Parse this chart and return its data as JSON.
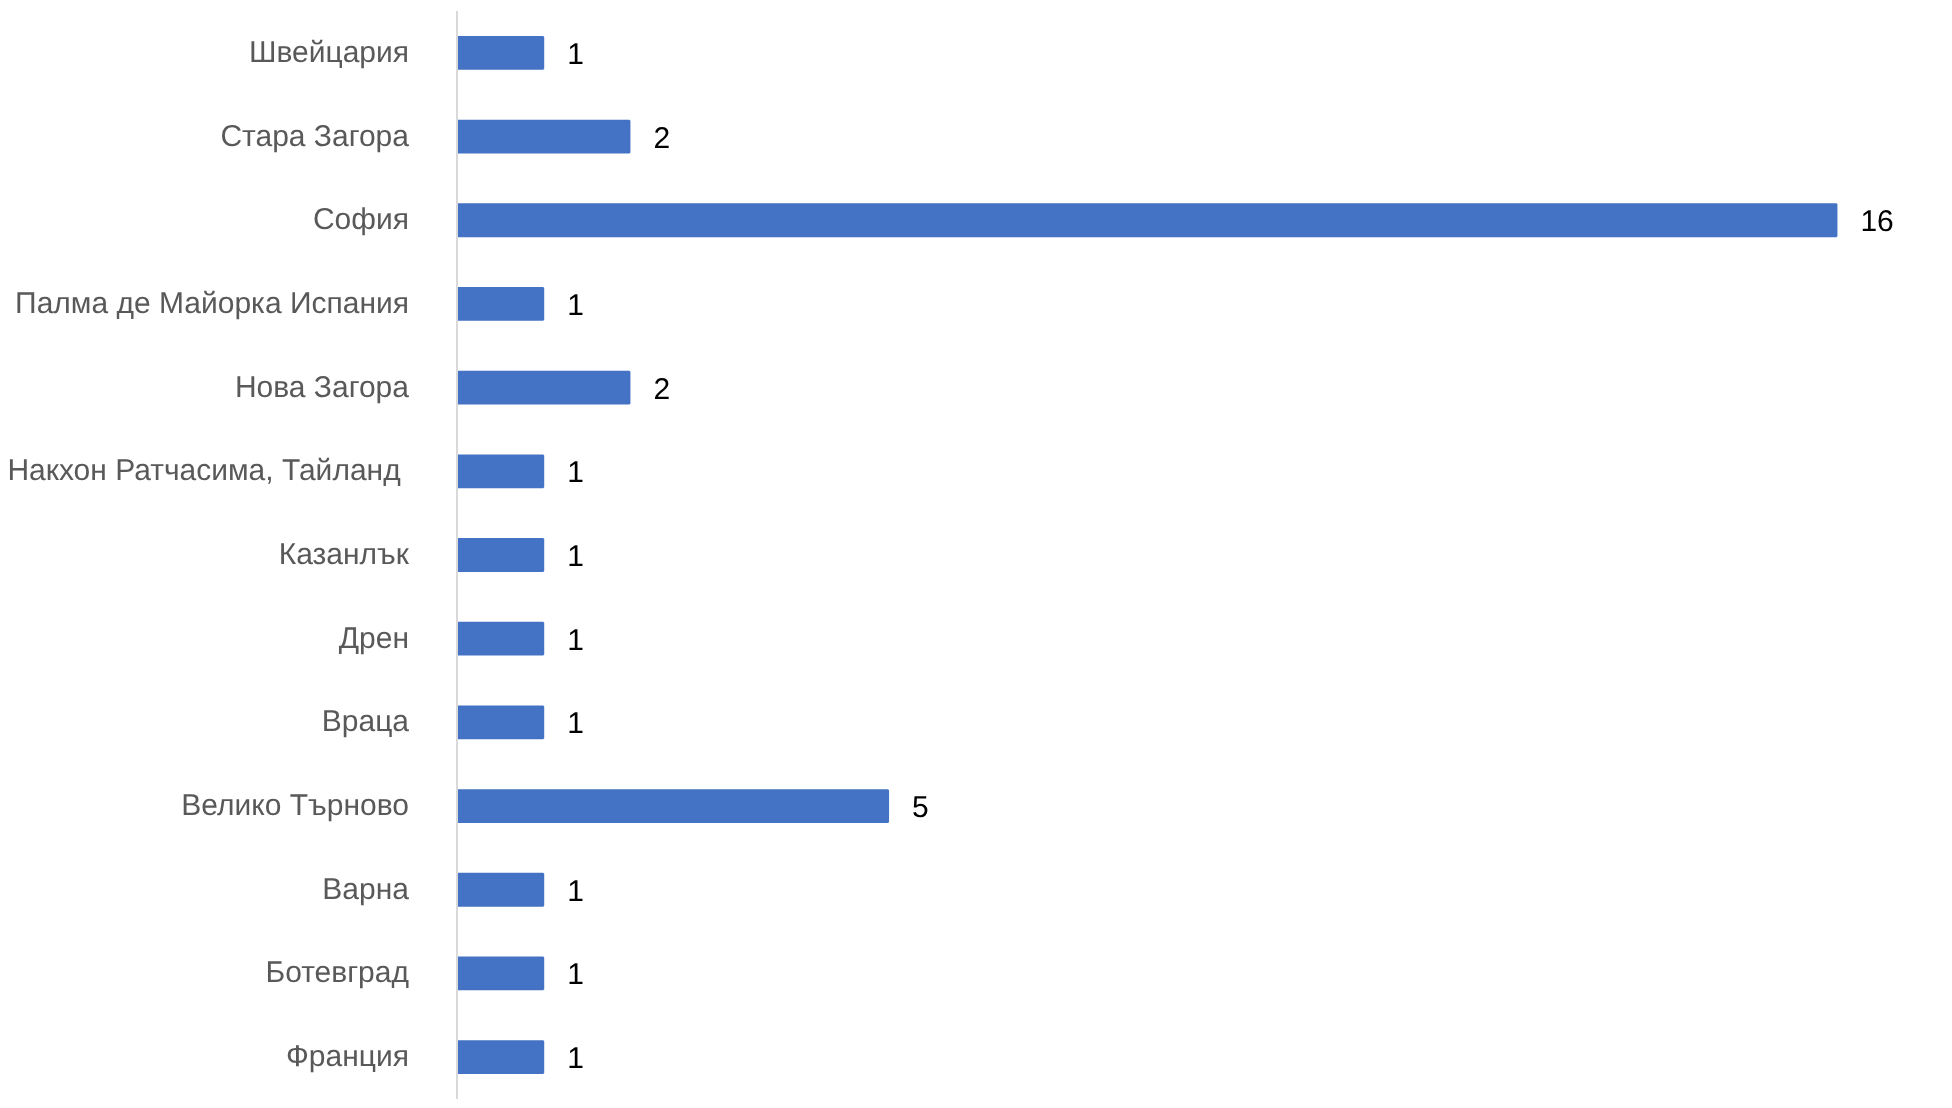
{
  "chart_data": {
    "type": "bar",
    "orientation": "horizontal",
    "categories": [
      "Швейцария",
      "Стара Загора",
      "София",
      "Палма де Майорка Испания",
      "Нова Загора",
      "Накхон Ратчасима,  Тайланд",
      "Казанлък",
      "Дрен",
      "Враца",
      "Велико Търново",
      "Варна",
      "Ботевград",
      "Франция"
    ],
    "values": [
      1,
      2,
      16,
      1,
      2,
      1,
      1,
      1,
      1,
      5,
      1,
      1,
      1
    ],
    "color": "#4472c4",
    "data_labels": true,
    "grid": false
  }
}
